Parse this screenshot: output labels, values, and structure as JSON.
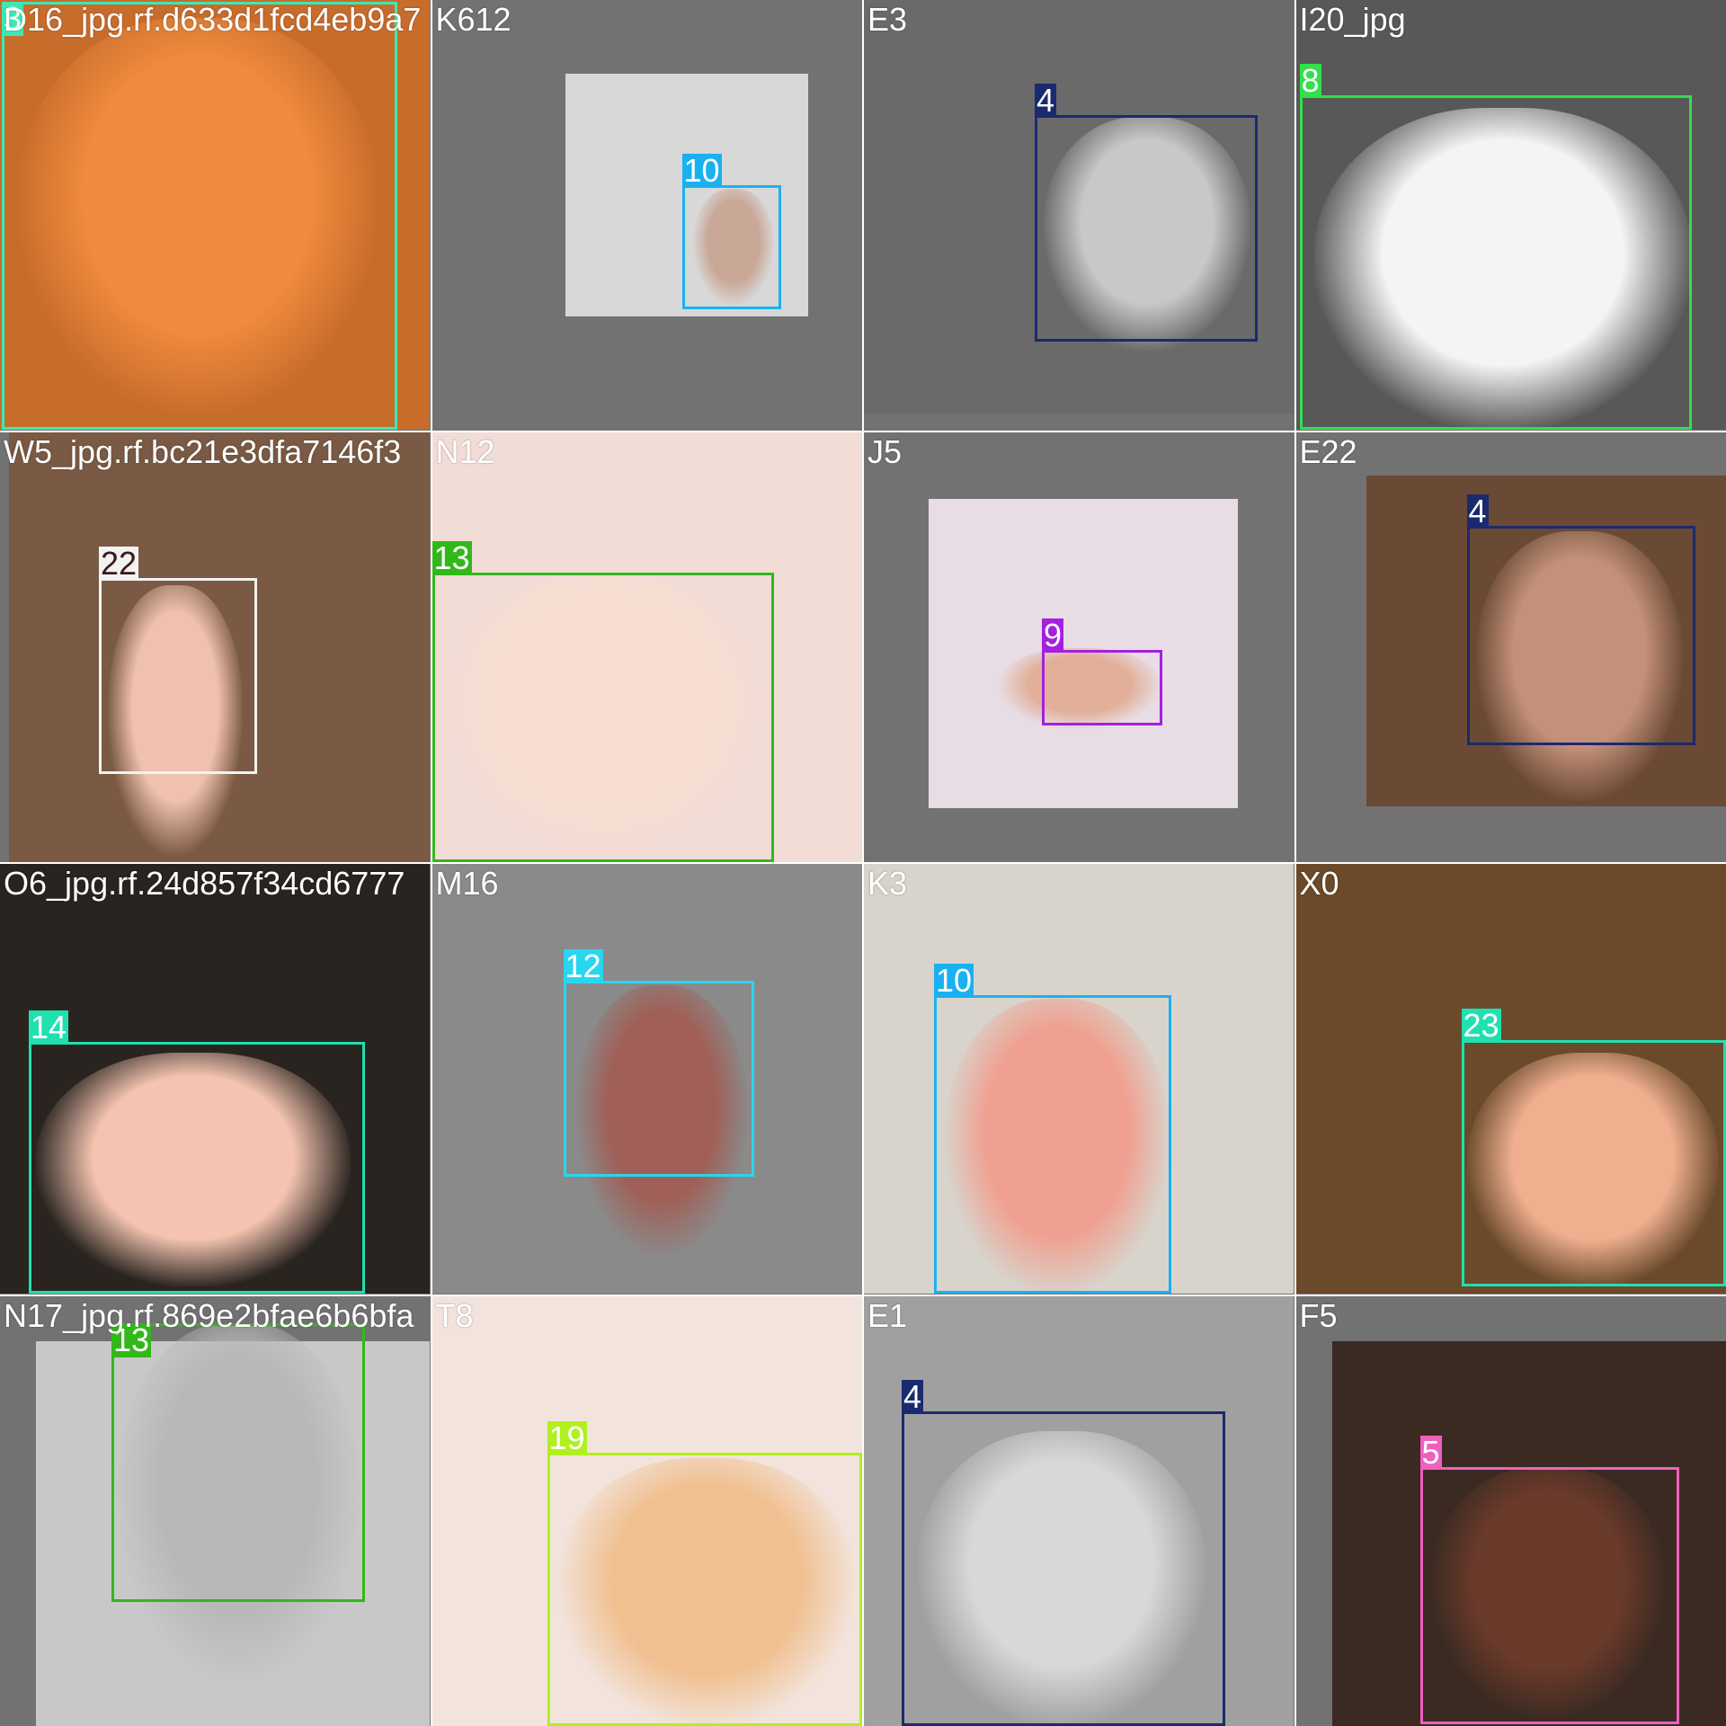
{
  "tiles": [
    {
      "filename": "D16_jpg.rf.d633d1fcd4eb9a7",
      "label": "3",
      "color": "#3de8b4",
      "bg": "#c26a2c",
      "photo": "orange"
    },
    {
      "filename": "K612",
      "label": "10",
      "color": "#1ab1f0",
      "bg": "#727272",
      "photo": "whitebox"
    },
    {
      "filename": "E3",
      "label": "4",
      "color": "#1a2a6e",
      "bg": "#727272",
      "photo": "gray"
    },
    {
      "filename": "I20_jpg",
      "label": "8",
      "color": "#31e04a",
      "bg": "#5d5d5d",
      "photo": "darkgray"
    },
    {
      "filename": "W5_jpg.rf.bc21e3dfa7146f3",
      "label": "22",
      "color": "#f2f2f2",
      "bg": "#6a4a3a",
      "photo": "room"
    },
    {
      "filename": "N12",
      "label": "13",
      "color": "#32b81a",
      "bg": "#e8d0c8",
      "photo": "pink"
    },
    {
      "filename": "J5",
      "label": "9",
      "color": "#a51fe0",
      "bg": "#727272",
      "photo": "pinkbox"
    },
    {
      "filename": "E22",
      "label": "4",
      "color": "#1a2a6e",
      "bg": "#727272",
      "photo": "brownbox"
    },
    {
      "filename": "O6_jpg.rf.24d857f34cd6777",
      "label": "14",
      "color": "#20e0b0",
      "bg": "#2a2420",
      "photo": "dark"
    },
    {
      "filename": "M16",
      "label": "12",
      "color": "#28d6f0",
      "bg": "#828282",
      "photo": "graywall"
    },
    {
      "filename": "K3",
      "label": "10",
      "color": "#1ab1f0",
      "bg": "#dcdcdc",
      "photo": "shelf"
    },
    {
      "filename": "X0",
      "label": "23",
      "color": "#20e0b0",
      "bg": "#7a5a3a",
      "photo": "wood"
    },
    {
      "filename": "N17_jpg.rf.869e2bfae6b6bfa",
      "label": "13",
      "color": "#32b81a",
      "bg": "#9a9a9a",
      "photo": "bw"
    },
    {
      "filename": "T8",
      "label": "19",
      "color": "#b0f020",
      "bg": "#f0dcd4",
      "photo": "peach"
    },
    {
      "filename": "E1",
      "label": "4",
      "color": "#1a2a6e",
      "bg": "#8c8c8c",
      "photo": "graystudio"
    },
    {
      "filename": "F5",
      "label": "5",
      "color": "#f060c0",
      "bg": "#3a2a20",
      "photo": "darkroom"
    }
  ]
}
